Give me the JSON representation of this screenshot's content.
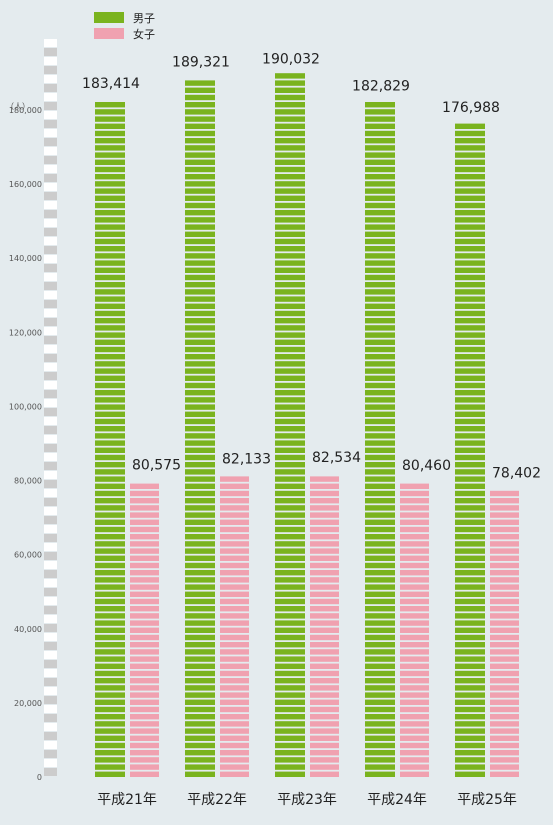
{
  "chart_data": {
    "type": "bar",
    "title": "",
    "xlabel": "",
    "ylabel": "（人）",
    "categories": [
      "平成21年",
      "平成22年",
      "平成23年",
      "平成24年",
      "平成25年"
    ],
    "series": [
      {
        "name": "男子",
        "values": [
          183414,
          189321,
          190032,
          182829,
          176988
        ],
        "color": "#7ab31e"
      },
      {
        "name": "女子",
        "values": [
          80575,
          82133,
          82534,
          80460,
          78402
        ],
        "color": "#f0a1b0"
      }
    ],
    "value_labels": {
      "男子": [
        "183,414",
        "189,321",
        "190,032",
        "182,829",
        "176,988"
      ],
      "女子": [
        "80,575",
        "82,133",
        "82,534",
        "80,460",
        "78,402"
      ]
    },
    "yticks": [
      0,
      20000,
      40000,
      60000,
      80000,
      100000,
      120000,
      140000,
      160000,
      180000
    ],
    "ytick_labels": [
      "0",
      "20,000",
      "40,000",
      "60,000",
      "80,000",
      "100,000",
      "120,000",
      "140,000",
      "160,000",
      "180,000"
    ],
    "ylim": [
      0,
      194000
    ],
    "grid": false,
    "legend": "top-left"
  }
}
